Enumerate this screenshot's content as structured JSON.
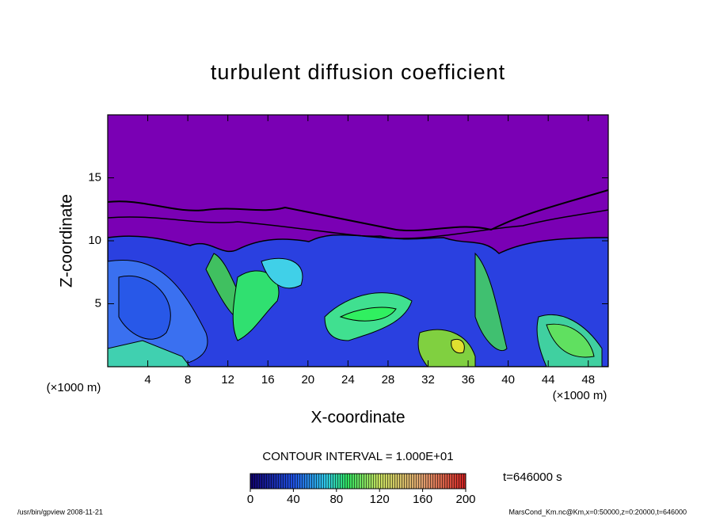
{
  "chart_data": {
    "type": "contour",
    "title": "turbulent diffusion coefficient",
    "x_label": "X-coordinate",
    "y_label": "Z-coordinate",
    "x_unit_label": "(×1000 m)",
    "xlim": [
      0,
      50
    ],
    "ylim": [
      0,
      20
    ],
    "xticks": [
      4,
      8,
      12,
      16,
      20,
      24,
      28,
      32,
      36,
      40,
      44,
      48
    ],
    "yticks": [
      5,
      10,
      15
    ],
    "contour_interval_label": "CONTOUR INTERVAL = 1.000E+01",
    "time_label": "t=646000 s",
    "colorbar_lim": [
      0,
      200
    ],
    "colorbar_ticks": [
      0,
      40,
      80,
      120,
      160,
      200
    ],
    "footer_left": "/usr/bin/gpview   2008-11-21",
    "footer_right": "MarsCond_Km.nc@Km,x=0:50000,z=0:20000,t=646000"
  }
}
